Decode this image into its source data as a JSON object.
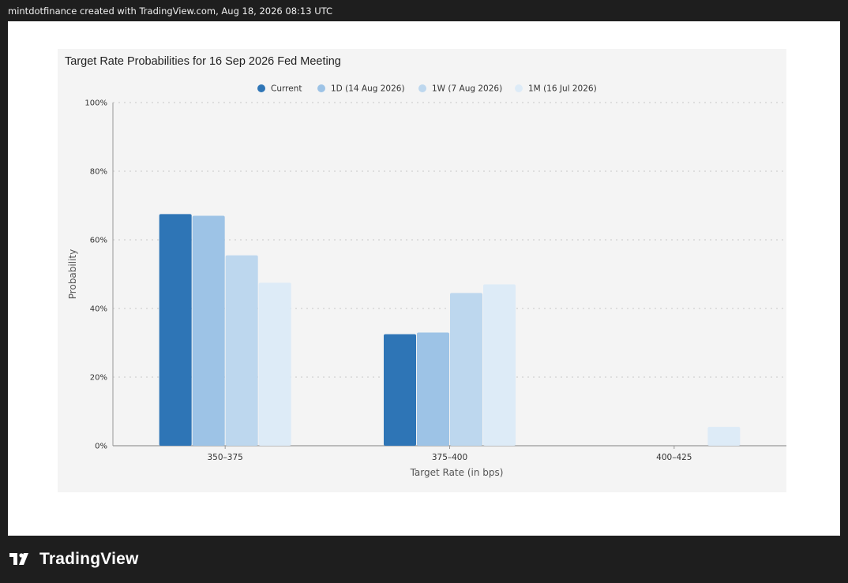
{
  "header": {
    "attribution": "mintdotfinance created with TradingView.com, Aug 18, 2026 08:13 UTC"
  },
  "footer": {
    "brand": "TradingView",
    "logo_icon": "tradingview-logo-icon"
  },
  "colors": {
    "current": "#2e75b6",
    "d1": "#9dc3e6",
    "w1": "#bdd7ee",
    "m1": "#ddebf7",
    "grid": "#c8c8c8",
    "axis": "#999999"
  },
  "chart_data": {
    "type": "bar",
    "title": "Target Rate Probabilities for 16 Sep 2026 Fed Meeting",
    "xlabel": "Target Rate (in bps)",
    "ylabel": "Probability",
    "categories": [
      "350–375",
      "375–400",
      "400–425"
    ],
    "ylim": [
      0,
      100
    ],
    "yticks": [
      "0%",
      "20%",
      "40%",
      "60%",
      "80%",
      "100%"
    ],
    "grid": true,
    "legend_position": "top",
    "series": [
      {
        "name": "Current",
        "color_key": "current",
        "values": [
          67.5,
          32.5,
          0
        ]
      },
      {
        "name": "1D (14 Aug 2026)",
        "color_key": "d1",
        "values": [
          67.0,
          33.0,
          0
        ]
      },
      {
        "name": "1W (7 Aug 2026)",
        "color_key": "w1",
        "values": [
          55.5,
          44.5,
          0
        ]
      },
      {
        "name": "1M (16 Jul 2026)",
        "color_key": "m1",
        "values": [
          47.5,
          47.0,
          5.5
        ]
      }
    ]
  }
}
